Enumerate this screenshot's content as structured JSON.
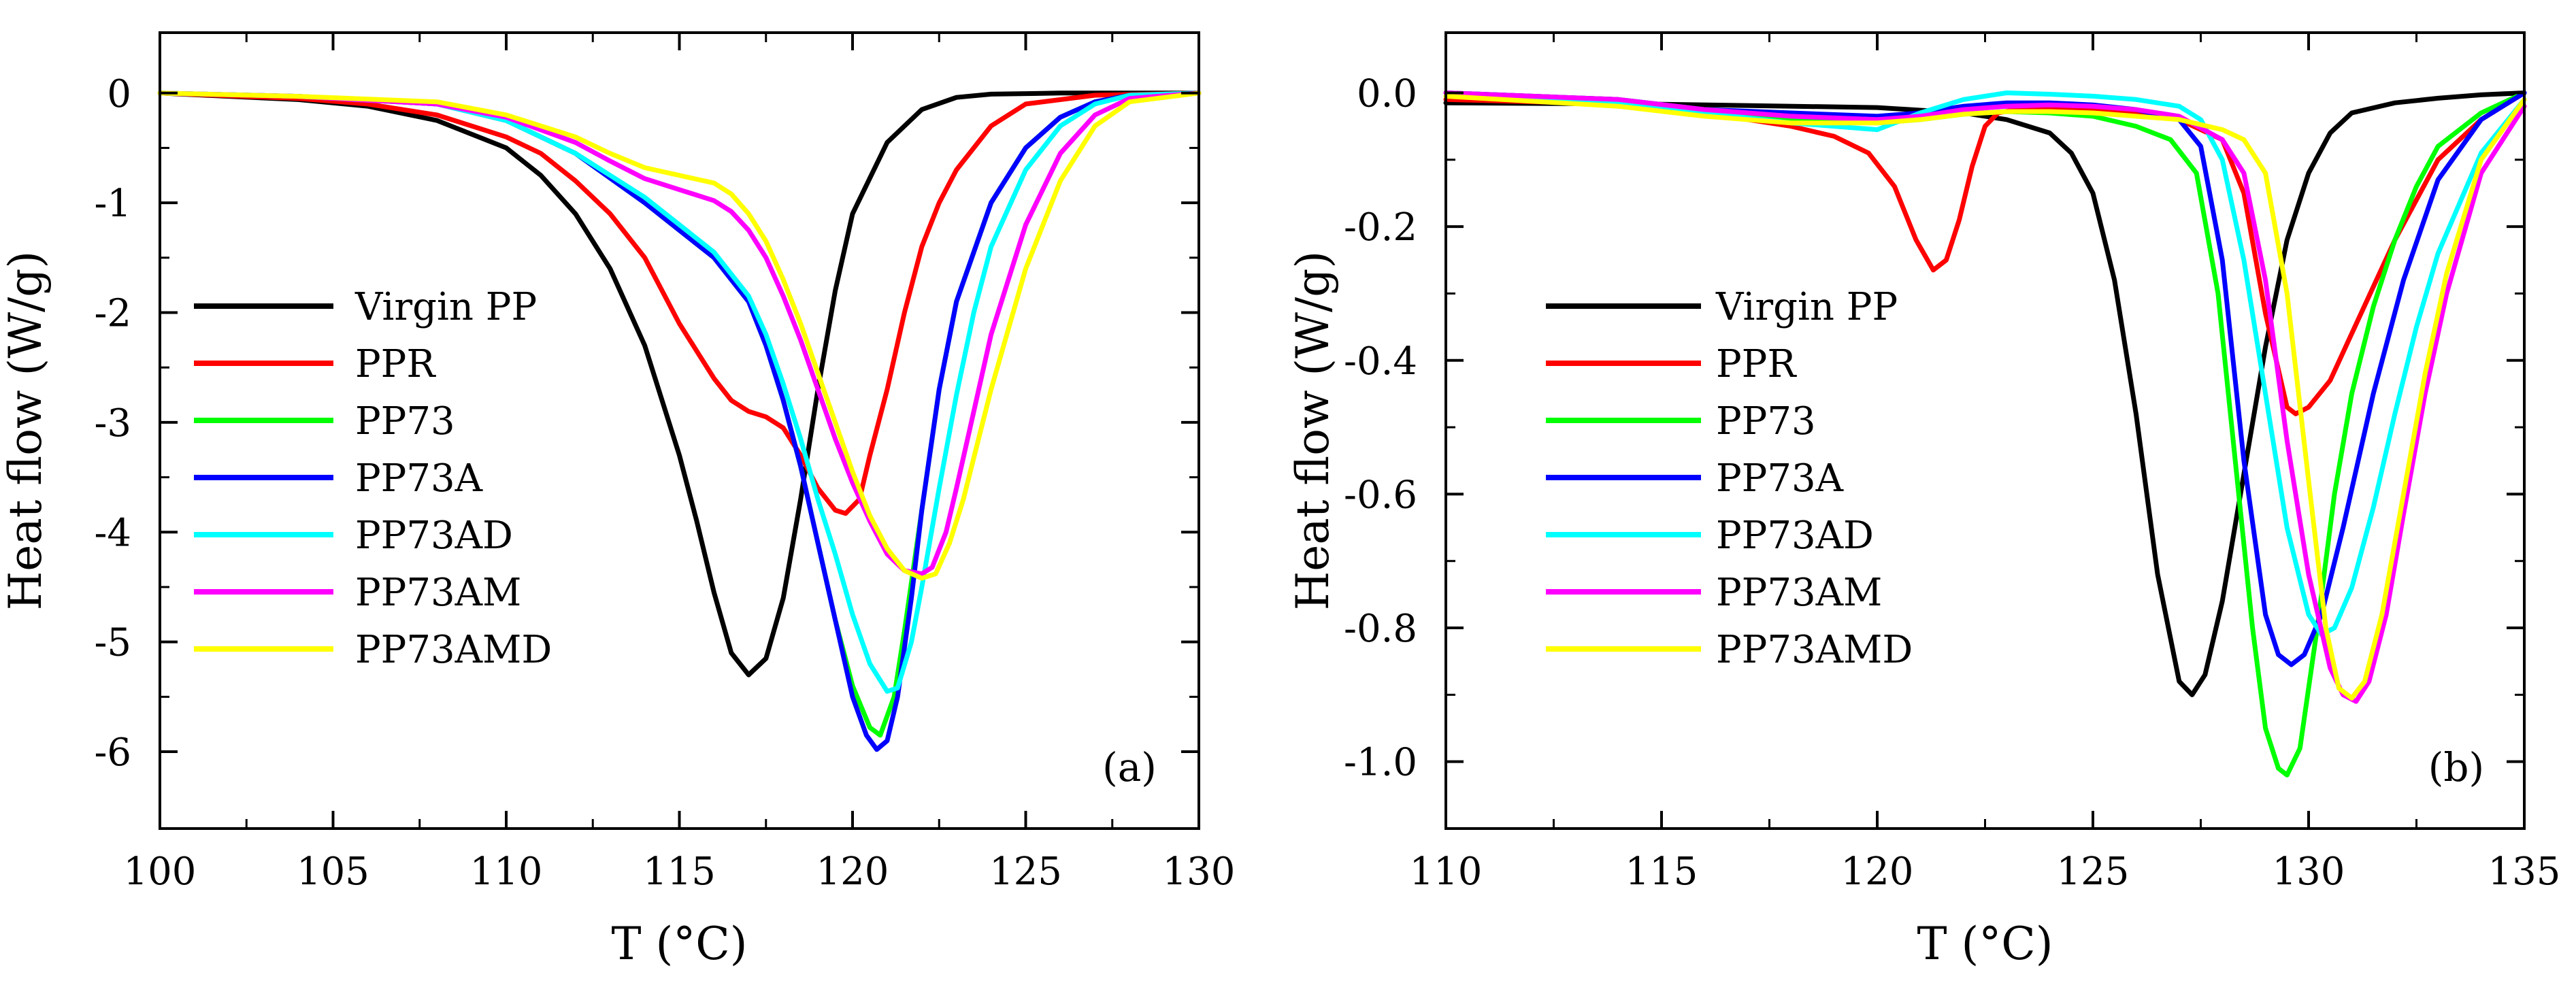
{
  "chart_data": [
    {
      "type": "line",
      "panel_label": "(a)",
      "xlabel": "T (°C)",
      "ylabel": "Heat flow (W/g)",
      "xlim": [
        100,
        130
      ],
      "ylim": [
        -6.7,
        0.55
      ],
      "xticks": [
        100,
        105,
        110,
        115,
        120,
        125,
        130
      ],
      "xtick_labels": [
        "100",
        "105",
        "110",
        "115",
        "120",
        "125",
        "130"
      ],
      "yticks": [
        0,
        -1,
        -2,
        -3,
        -4,
        -5,
        -6
      ],
      "ytick_labels": [
        "0",
        "-1",
        "-2",
        "-3",
        "-4",
        "-5",
        "-6"
      ],
      "legend_position": "left",
      "series": [
        {
          "name": "Virgin PP",
          "color": "#000000",
          "x": [
            100,
            104,
            106,
            108,
            110,
            111,
            112,
            113,
            114,
            115,
            115.5,
            116,
            116.5,
            117,
            117.5,
            118,
            118.5,
            119,
            119.5,
            120,
            121,
            122,
            123,
            124,
            126,
            130
          ],
          "y": [
            0,
            -0.06,
            -0.12,
            -0.25,
            -0.5,
            -0.75,
            -1.1,
            -1.6,
            -2.3,
            -3.3,
            -3.9,
            -4.55,
            -5.1,
            -5.3,
            -5.15,
            -4.6,
            -3.7,
            -2.7,
            -1.8,
            -1.1,
            -0.45,
            -0.15,
            -0.04,
            -0.01,
            0,
            0
          ]
        },
        {
          "name": "PPR",
          "color": "#ff0000",
          "x": [
            100,
            104,
            106,
            108,
            110,
            111,
            112,
            113,
            114,
            115,
            116,
            116.5,
            117,
            117.5,
            118,
            118.5,
            119,
            119.5,
            119.8,
            120.2,
            120.5,
            121,
            121.5,
            122,
            122.5,
            123,
            124,
            125,
            127,
            130
          ],
          "y": [
            0,
            -0.05,
            -0.1,
            -0.2,
            -0.4,
            -0.55,
            -0.8,
            -1.1,
            -1.5,
            -2.1,
            -2.6,
            -2.8,
            -2.9,
            -2.95,
            -3.05,
            -3.3,
            -3.6,
            -3.8,
            -3.83,
            -3.7,
            -3.3,
            -2.7,
            -2.0,
            -1.4,
            -1.0,
            -0.7,
            -0.3,
            -0.1,
            -0.02,
            0
          ]
        },
        {
          "name": "PP73",
          "color": "#00ff00",
          "x": [
            100,
            104,
            108,
            110,
            112,
            114,
            115,
            116,
            117,
            117.5,
            118,
            118.5,
            119,
            119.5,
            120,
            120.5,
            120.8,
            121.2,
            121.5,
            122,
            122.5,
            123,
            124,
            125,
            126,
            127,
            128,
            130
          ],
          "y": [
            0,
            -0.03,
            -0.1,
            -0.25,
            -0.55,
            -1.0,
            -1.25,
            -1.5,
            -1.9,
            -2.3,
            -2.8,
            -3.4,
            -4.1,
            -4.8,
            -5.4,
            -5.78,
            -5.85,
            -5.5,
            -4.9,
            -3.8,
            -2.7,
            -1.9,
            -1.0,
            -0.5,
            -0.22,
            -0.08,
            -0.02,
            0
          ]
        },
        {
          "name": "PP73A",
          "color": "#0000ff",
          "x": [
            100,
            104,
            108,
            110,
            112,
            114,
            115,
            116,
            117,
            117.5,
            118,
            118.5,
            119,
            119.5,
            120,
            120.4,
            120.7,
            121,
            121.3,
            121.7,
            122,
            122.5,
            123,
            124,
            125,
            126,
            127,
            128,
            130
          ],
          "y": [
            0,
            -0.03,
            -0.1,
            -0.25,
            -0.55,
            -1.0,
            -1.25,
            -1.5,
            -1.9,
            -2.3,
            -2.8,
            -3.4,
            -4.1,
            -4.8,
            -5.5,
            -5.85,
            -5.98,
            -5.9,
            -5.5,
            -4.6,
            -3.8,
            -2.7,
            -1.9,
            -1.0,
            -0.5,
            -0.22,
            -0.08,
            -0.02,
            0
          ]
        },
        {
          "name": "PP73AD",
          "color": "#00ffff",
          "x": [
            100,
            104,
            108,
            110,
            112,
            114,
            115,
            116,
            117,
            117.5,
            118,
            118.5,
            119,
            119.5,
            120,
            120.5,
            121,
            121.3,
            121.7,
            122,
            122.5,
            123,
            123.5,
            124,
            125,
            126,
            127,
            128,
            130
          ],
          "y": [
            0,
            -0.03,
            -0.1,
            -0.25,
            -0.55,
            -0.95,
            -1.2,
            -1.45,
            -1.85,
            -2.2,
            -2.65,
            -3.15,
            -3.7,
            -4.2,
            -4.75,
            -5.2,
            -5.45,
            -5.42,
            -5.0,
            -4.5,
            -3.6,
            -2.75,
            -2.0,
            -1.4,
            -0.7,
            -0.3,
            -0.1,
            -0.02,
            0
          ]
        },
        {
          "name": "PP73AM",
          "color": "#ff00ff",
          "x": [
            100,
            104,
            108,
            110,
            112,
            113,
            114,
            115,
            116,
            116.5,
            117,
            117.5,
            118,
            118.5,
            119,
            119.5,
            120,
            120.5,
            121,
            121.5,
            122,
            122.3,
            122.7,
            123,
            123.5,
            124,
            125,
            126,
            127,
            128,
            130
          ],
          "y": [
            0,
            -0.03,
            -0.1,
            -0.22,
            -0.45,
            -0.62,
            -0.78,
            -0.88,
            -0.98,
            -1.08,
            -1.25,
            -1.5,
            -1.85,
            -2.25,
            -2.7,
            -3.15,
            -3.55,
            -3.9,
            -4.2,
            -4.35,
            -4.38,
            -4.32,
            -4.0,
            -3.6,
            -2.9,
            -2.2,
            -1.2,
            -0.55,
            -0.2,
            -0.05,
            0
          ]
        },
        {
          "name": "PP73AMD",
          "color": "#ffff00",
          "x": [
            100,
            104,
            108,
            110,
            112,
            113,
            114,
            115,
            116,
            116.5,
            117,
            117.5,
            118,
            118.5,
            119,
            119.5,
            120,
            120.5,
            121,
            121.5,
            122,
            122.4,
            122.8,
            123.2,
            123.6,
            124,
            125,
            126,
            127,
            128,
            130
          ],
          "y": [
            0,
            -0.03,
            -0.08,
            -0.2,
            -0.4,
            -0.55,
            -0.68,
            -0.75,
            -0.82,
            -0.92,
            -1.1,
            -1.35,
            -1.7,
            -2.1,
            -2.55,
            -3.0,
            -3.45,
            -3.85,
            -4.15,
            -4.35,
            -4.42,
            -4.38,
            -4.1,
            -3.7,
            -3.2,
            -2.7,
            -1.6,
            -0.8,
            -0.3,
            -0.08,
            0
          ]
        }
      ]
    },
    {
      "type": "line",
      "panel_label": "(b)",
      "xlabel": "T (°C)",
      "ylabel": "Heat flow (W/g)",
      "xlim": [
        110,
        135
      ],
      "ylim": [
        -1.1,
        0.09
      ],
      "xticks": [
        110,
        115,
        120,
        125,
        130,
        135
      ],
      "xtick_labels": [
        "110",
        "115",
        "120",
        "125",
        "130",
        "135"
      ],
      "yticks": [
        0.0,
        -0.2,
        -0.4,
        -0.6,
        -0.8,
        -1.0
      ],
      "ytick_labels": [
        "0.0",
        "-0.2",
        "-0.4",
        "-0.6",
        "-0.8",
        "-1.0"
      ],
      "legend_position": "left",
      "series": [
        {
          "name": "Virgin PP",
          "color": "#000000",
          "x": [
            110,
            115,
            120,
            122,
            123,
            124,
            124.5,
            125,
            125.5,
            126,
            126.5,
            127,
            127.3,
            127.6,
            128,
            128.5,
            129,
            129.5,
            130,
            130.5,
            131,
            132,
            133,
            134,
            135
          ],
          "y": [
            -0.015,
            -0.017,
            -0.022,
            -0.03,
            -0.04,
            -0.06,
            -0.09,
            -0.15,
            -0.28,
            -0.48,
            -0.72,
            -0.88,
            -0.9,
            -0.87,
            -0.76,
            -0.57,
            -0.38,
            -0.22,
            -0.12,
            -0.06,
            -0.03,
            -0.015,
            -0.008,
            -0.003,
            0
          ]
        },
        {
          "name": "PPR",
          "color": "#ff0000",
          "x": [
            110,
            113,
            115,
            117,
            118,
            119,
            119.8,
            120.4,
            120.9,
            121.3,
            121.6,
            121.9,
            122.2,
            122.5,
            122.8,
            123.2,
            124,
            125,
            126,
            127,
            128,
            128.5,
            129,
            129.5,
            129.7,
            130,
            130.5,
            131,
            131.5,
            132,
            132.5,
            133,
            134,
            135
          ],
          "y": [
            -0.01,
            -0.015,
            -0.025,
            -0.04,
            -0.05,
            -0.065,
            -0.09,
            -0.14,
            -0.22,
            -0.265,
            -0.25,
            -0.19,
            -0.11,
            -0.05,
            -0.03,
            -0.025,
            -0.025,
            -0.025,
            -0.03,
            -0.04,
            -0.07,
            -0.15,
            -0.33,
            -0.47,
            -0.48,
            -0.47,
            -0.43,
            -0.36,
            -0.29,
            -0.22,
            -0.16,
            -0.1,
            -0.04,
            0
          ]
        },
        {
          "name": "PP73",
          "color": "#00ff00",
          "x": [
            110,
            114,
            116,
            118,
            120,
            121,
            122,
            123,
            124,
            125,
            126,
            126.8,
            127.4,
            127.9,
            128.3,
            128.7,
            129,
            129.3,
            129.5,
            129.8,
            130.2,
            130.6,
            131,
            131.5,
            132,
            132.5,
            133,
            134,
            135
          ],
          "y": [
            0,
            -0.01,
            -0.025,
            -0.04,
            -0.045,
            -0.04,
            -0.032,
            -0.028,
            -0.03,
            -0.035,
            -0.05,
            -0.07,
            -0.12,
            -0.3,
            -0.55,
            -0.8,
            -0.95,
            -1.01,
            -1.02,
            -0.98,
            -0.8,
            -0.6,
            -0.45,
            -0.32,
            -0.22,
            -0.14,
            -0.08,
            -0.03,
            0
          ]
        },
        {
          "name": "PP73A",
          "color": "#0000ff",
          "x": [
            110,
            114,
            116,
            118,
            120,
            121,
            122,
            123,
            124,
            125,
            126,
            127,
            127.5,
            128,
            128.5,
            129,
            129.3,
            129.6,
            129.9,
            130.3,
            130.8,
            131.5,
            132.2,
            133,
            134,
            135
          ],
          "y": [
            0,
            -0.01,
            -0.025,
            -0.03,
            -0.035,
            -0.03,
            -0.02,
            -0.015,
            -0.015,
            -0.018,
            -0.025,
            -0.04,
            -0.08,
            -0.25,
            -0.55,
            -0.78,
            -0.84,
            -0.855,
            -0.84,
            -0.78,
            -0.65,
            -0.45,
            -0.28,
            -0.13,
            -0.04,
            0
          ]
        },
        {
          "name": "PP73AD",
          "color": "#00ffff",
          "x": [
            110,
            114,
            116,
            118,
            120,
            121,
            122,
            123,
            124,
            125,
            126,
            127,
            127.5,
            128,
            128.5,
            129,
            129.5,
            130,
            130.3,
            130.6,
            131,
            131.5,
            132,
            132.5,
            133,
            134,
            135
          ],
          "y": [
            0,
            -0.015,
            -0.03,
            -0.045,
            -0.055,
            -0.03,
            -0.01,
            0,
            -0.002,
            -0.005,
            -0.01,
            -0.02,
            -0.04,
            -0.1,
            -0.25,
            -0.45,
            -0.65,
            -0.78,
            -0.81,
            -0.8,
            -0.74,
            -0.62,
            -0.48,
            -0.35,
            -0.24,
            -0.09,
            -0.01
          ]
        },
        {
          "name": "PP73AM",
          "color": "#ff00ff",
          "x": [
            110,
            114,
            116,
            118,
            120,
            121,
            122,
            123,
            124,
            125,
            126,
            127,
            128,
            128.5,
            129,
            129.5,
            130,
            130.5,
            130.8,
            131.1,
            131.4,
            131.8,
            132.2,
            132.7,
            133.2,
            134,
            135
          ],
          "y": [
            0,
            -0.01,
            -0.025,
            -0.035,
            -0.04,
            -0.035,
            -0.025,
            -0.02,
            -0.018,
            -0.02,
            -0.025,
            -0.035,
            -0.07,
            -0.12,
            -0.28,
            -0.52,
            -0.72,
            -0.86,
            -0.9,
            -0.91,
            -0.88,
            -0.78,
            -0.63,
            -0.45,
            -0.3,
            -0.12,
            -0.02
          ]
        },
        {
          "name": "PP73AMD",
          "color": "#ffff00",
          "x": [
            110,
            114,
            116,
            118,
            120,
            121,
            122,
            123,
            124,
            125,
            126,
            127,
            128,
            128.5,
            129,
            129.5,
            130,
            130.4,
            130.7,
            131,
            131.3,
            131.7,
            132.2,
            132.7,
            133.2,
            134,
            135
          ],
          "y": [
            -0.005,
            -0.02,
            -0.035,
            -0.045,
            -0.045,
            -0.04,
            -0.032,
            -0.028,
            -0.028,
            -0.03,
            -0.035,
            -0.04,
            -0.055,
            -0.07,
            -0.12,
            -0.3,
            -0.58,
            -0.8,
            -0.89,
            -0.905,
            -0.88,
            -0.78,
            -0.6,
            -0.42,
            -0.27,
            -0.1,
            -0.01
          ]
        }
      ]
    }
  ]
}
